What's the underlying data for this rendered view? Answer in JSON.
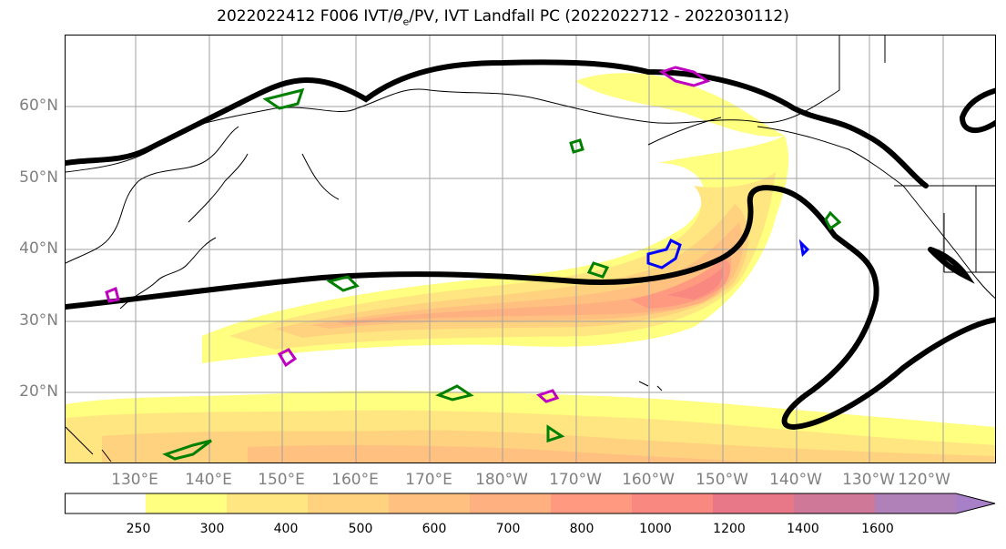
{
  "title": "2022022412 F006 IVT/θe/PV, IVT Landfall PC (2022022712 - 2022030112)",
  "title_parts": {
    "before": "2022022412 F006 IVT/",
    "theta": "θ",
    "sub": "e",
    "after": "/PV, IVT Landfall PC (2022022712 - 2022030112)"
  },
  "latitude_labels": [
    "60°N",
    "50°N",
    "40°N",
    "30°N",
    "20°N"
  ],
  "longitude_labels": [
    "130°E",
    "140°E",
    "150°E",
    "160°E",
    "170°E",
    "180°W",
    "170°W",
    "160°W",
    "150°W",
    "140°W",
    "130°W",
    "120°W"
  ],
  "colorbar": {
    "tick_labels": [
      "250",
      "300",
      "400",
      "500",
      "600",
      "700",
      "800",
      "1000",
      "1200",
      "1400",
      "1600"
    ],
    "colors": [
      "#ffffff",
      "#ffff80",
      "#ffe680",
      "#ffd280",
      "#ffc080",
      "#ffb080",
      "#ff9a80",
      "#f88880",
      "#e87888",
      "#d07898",
      "#b080b8",
      "#a880c8"
    ]
  },
  "map_colors": {
    "geopotential": "#000000",
    "pv_positive": "#008000",
    "theta_e": "#0000ff",
    "landfall_pc": "#c000c0",
    "grid": "#a0a0a0"
  }
}
